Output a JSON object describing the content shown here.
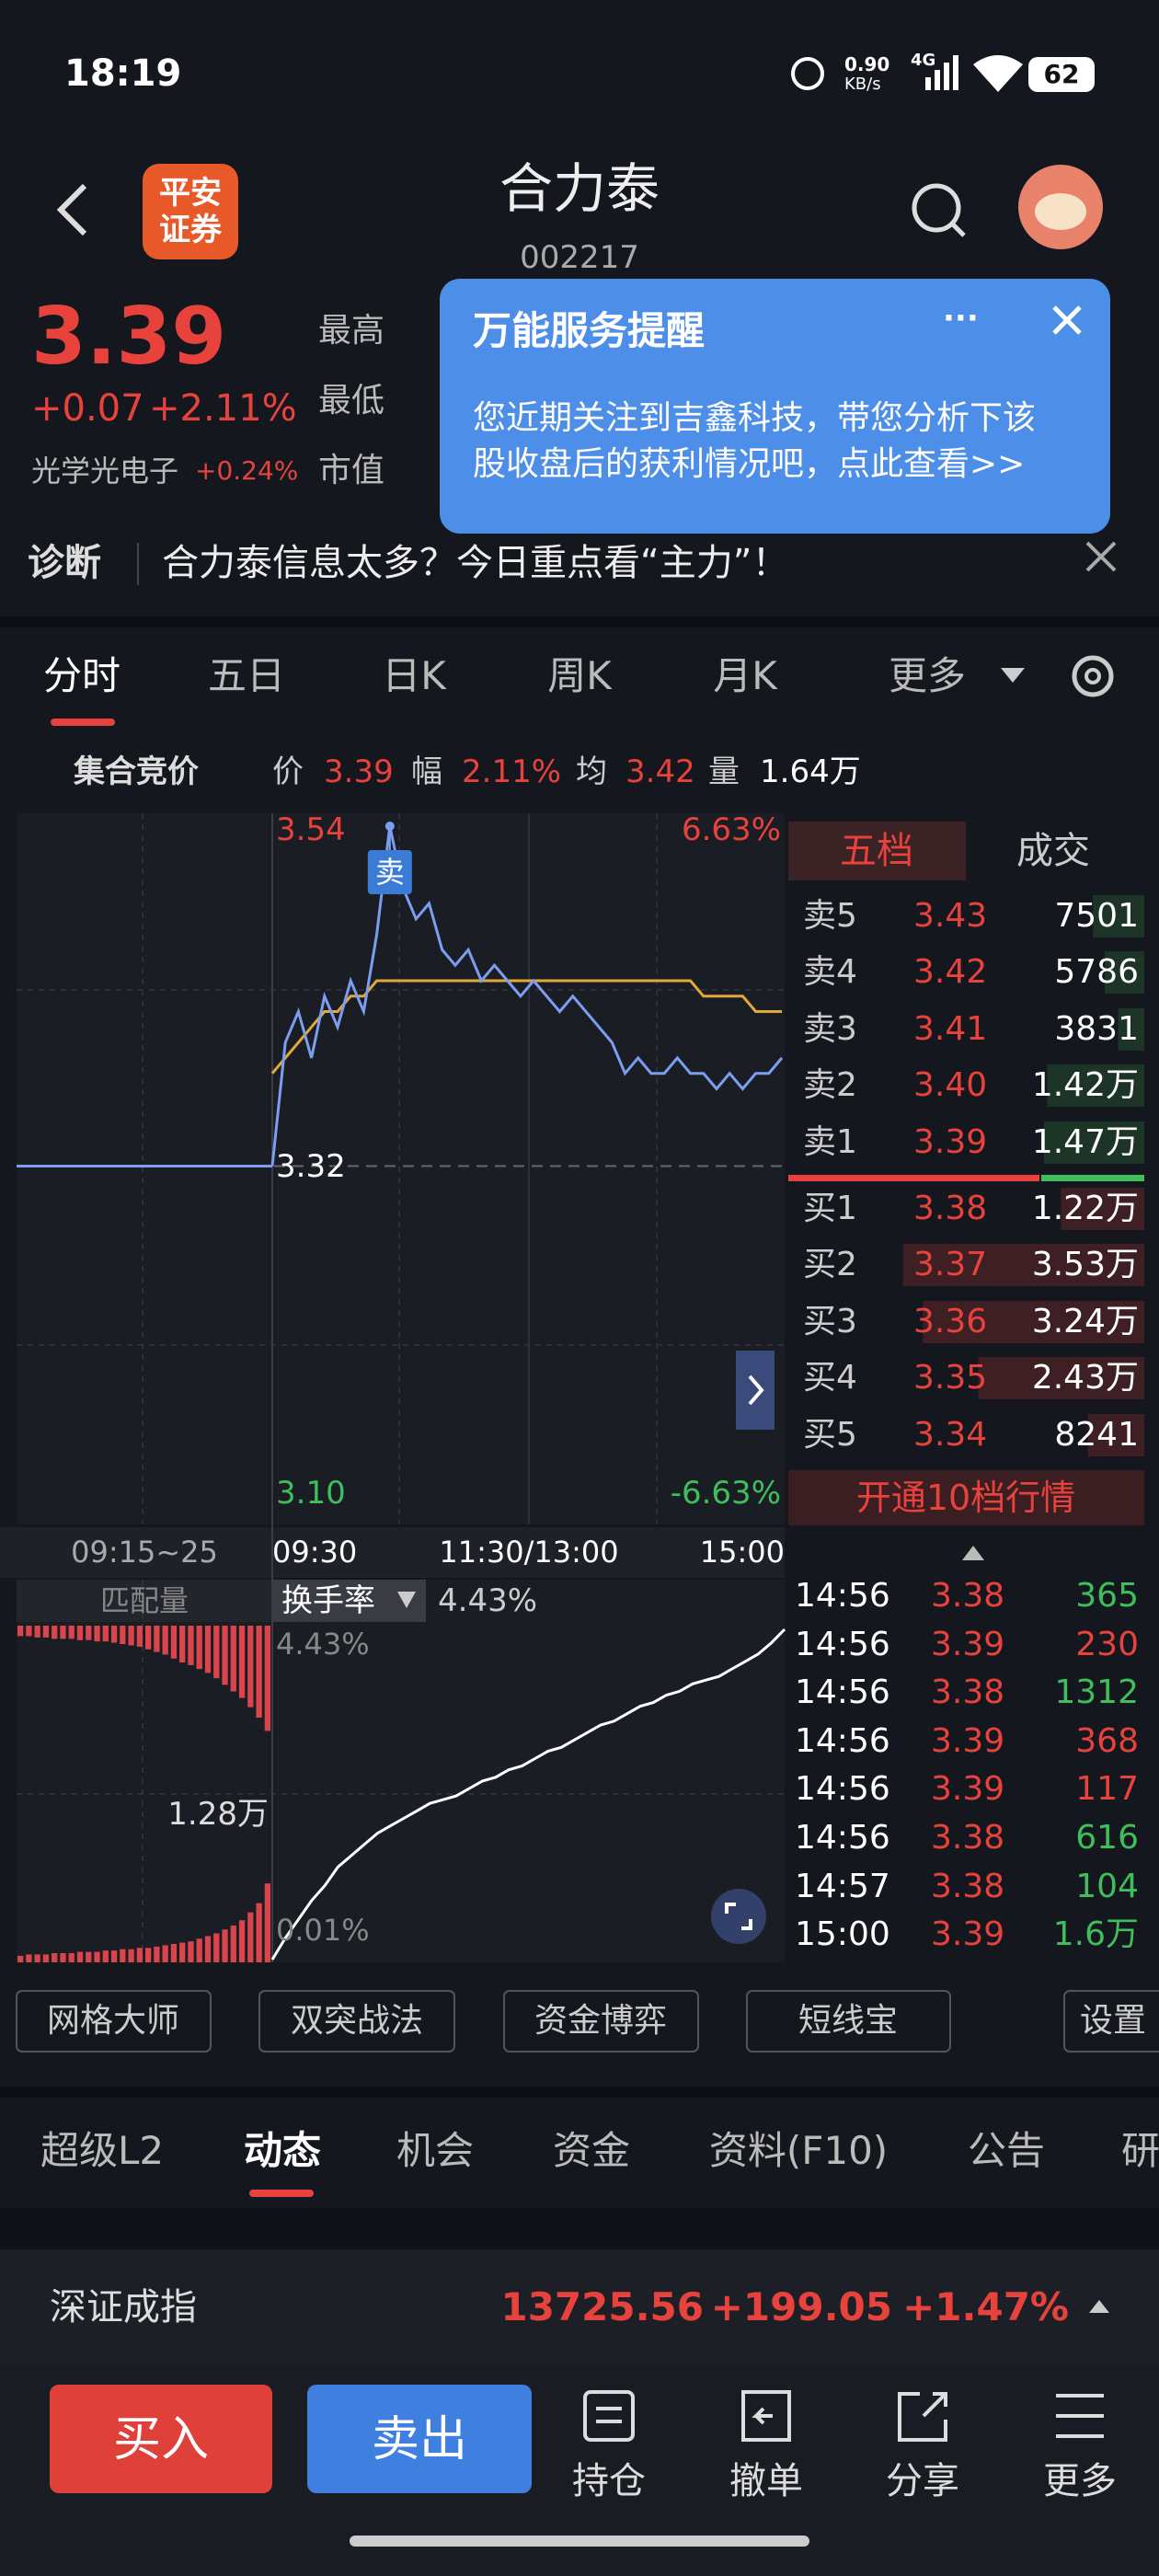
{
  "status": {
    "time": "18:19",
    "speed": "0.90",
    "speed_unit": "KB/s",
    "network": "4G",
    "battery": "62"
  },
  "header": {
    "logo": [
      "平安",
      "证券"
    ],
    "title": "合力泰",
    "code": "002217"
  },
  "quote": {
    "price": "3.39",
    "change": "+0.07",
    "change_pct": "+2.11%",
    "sector": "光学光电子",
    "sector_pct": "+0.24%",
    "fields": [
      "最高",
      "最低",
      "市值"
    ]
  },
  "popup": {
    "title": "万能服务提醒",
    "more": "···",
    "body": "您近期关注到吉鑫科技，带您分析下该股收盘后的获利情况吧，点此查看>>"
  },
  "diagnosis": {
    "label": "诊断",
    "text": "合力泰信息太多？今日重点看“主力”！"
  },
  "tabs": [
    "分时",
    "五日",
    "日K",
    "周K",
    "月K",
    "更多"
  ],
  "info": {
    "label": "集合竞价",
    "items": [
      {
        "key": "价",
        "value": "3.39"
      },
      {
        "key": "幅",
        "value": "2.11%"
      },
      {
        "key": "均",
        "value": "3.42"
      },
      {
        "key": "量",
        "value": "1.64万"
      }
    ]
  },
  "chart_data": {
    "type": "line",
    "ylim": [
      3.1,
      3.54
    ],
    "yticks": [
      {
        "value": 3.1,
        "label": "3.10"
      },
      3.32,
      3.54
    ],
    "pct_labels": [
      "6.63%",
      "-6.63%"
    ],
    "x_labels": [
      "09:15~25",
      "09:30",
      "11:30/13:00",
      "15:00"
    ],
    "sell_marker": "卖",
    "auction": [
      3.32,
      3.32
    ],
    "price": [
      3.32,
      3.4,
      3.42,
      3.39,
      3.43,
      3.41,
      3.44,
      3.42,
      3.47,
      3.54,
      3.5,
      3.48,
      3.49,
      3.46,
      3.45,
      3.46,
      3.44,
      3.45,
      3.44,
      3.43,
      3.44,
      3.43,
      3.42,
      3.43,
      3.42,
      3.41,
      3.4,
      3.38,
      3.39,
      3.38,
      3.38,
      3.39,
      3.38,
      3.38,
      3.37,
      3.38,
      3.37,
      3.38,
      3.38,
      3.39
    ],
    "price_color": "#7b9ef0",
    "avg": [
      3.38,
      3.39,
      3.4,
      3.41,
      3.42,
      3.42,
      3.43,
      3.43,
      3.44,
      3.44,
      3.44,
      3.44,
      3.44,
      3.44,
      3.44,
      3.44,
      3.44,
      3.44,
      3.44,
      3.44,
      3.44,
      3.44,
      3.44,
      3.44,
      3.44,
      3.44,
      3.44,
      3.44,
      3.44,
      3.44,
      3.44,
      3.44,
      3.44,
      3.43,
      3.43,
      3.43,
      3.43,
      3.42,
      3.42,
      3.42
    ],
    "avg_color": "#e0a93a"
  },
  "lower": {
    "indicator": "匹配量",
    "match_mid": {
      "value": 1.28,
      "label": "1.28万"
    },
    "match_upper": [
      0.08,
      0.08,
      0.09,
      0.09,
      0.1,
      0.1,
      0.1,
      0.11,
      0.11,
      0.12,
      0.12,
      0.13,
      0.14,
      0.15,
      0.16,
      0.18,
      0.2,
      0.22,
      0.25,
      0.28,
      0.3,
      0.33,
      0.36,
      0.4,
      0.45,
      0.5,
      0.55,
      0.62,
      0.7,
      0.8
    ],
    "match_lower": [
      0.05,
      0.06,
      0.06,
      0.06,
      0.07,
      0.07,
      0.07,
      0.08,
      0.08,
      0.08,
      0.09,
      0.09,
      0.1,
      0.1,
      0.11,
      0.11,
      0.12,
      0.13,
      0.14,
      0.15,
      0.16,
      0.18,
      0.2,
      0.22,
      0.25,
      0.28,
      0.32,
      0.38,
      0.45,
      0.6
    ],
    "selector": "换手率",
    "current": "4.43%",
    "turnover_ylim": [
      0.01,
      4.43
    ],
    "turnover_yticks": [
      {
        "value": 0.01,
        "label": "0.01%"
      },
      {
        "value": 4.43,
        "label": "4.43%"
      }
    ],
    "turnover": [
      0.01,
      0.3,
      0.55,
      0.8,
      1.0,
      1.25,
      1.4,
      1.55,
      1.7,
      1.8,
      1.9,
      2.0,
      2.1,
      2.15,
      2.2,
      2.3,
      2.4,
      2.45,
      2.55,
      2.6,
      2.7,
      2.8,
      2.85,
      2.95,
      3.05,
      3.15,
      3.2,
      3.3,
      3.4,
      3.45,
      3.55,
      3.6,
      3.7,
      3.75,
      3.8,
      3.9,
      4.0,
      4.1,
      4.25,
      4.43
    ]
  },
  "order_book": {
    "tabs": [
      "五档",
      "成交"
    ],
    "asks": [
      {
        "label": "卖5",
        "price": "3.43",
        "volume": 7501
      },
      {
        "label": "卖4",
        "price": "3.42",
        "volume": 5786
      },
      {
        "label": "卖3",
        "price": "3.41",
        "volume": 3831
      },
      {
        "label": "卖2",
        "price": "3.40",
        "volume": {
          "value": 14200,
          "label": "1.42万"
        }
      },
      {
        "label": "卖1",
        "price": "3.39",
        "volume": {
          "value": 14700,
          "label": "1.47万"
        }
      }
    ],
    "bids": [
      {
        "label": "买1",
        "price": "3.38",
        "volume": {
          "value": 12200,
          "label": "1.22万"
        }
      },
      {
        "label": "买2",
        "price": "3.37",
        "volume": {
          "value": 35300,
          "label": "3.53万"
        }
      },
      {
        "label": "买3",
        "price": "3.36",
        "volume": {
          "value": 32400,
          "label": "3.24万"
        }
      },
      {
        "label": "买4",
        "price": "3.35",
        "volume": {
          "value": 24300,
          "label": "2.43万"
        }
      },
      {
        "label": "买5",
        "price": "3.34",
        "volume": 8241
      }
    ],
    "upgrade": "开通10档行情"
  },
  "trades": [
    {
      "time": "14:56",
      "price": "3.38",
      "volume": "365",
      "color": "#3fbf5b"
    },
    {
      "time": "14:56",
      "price": "3.39",
      "volume": "230",
      "color": "#e8423c"
    },
    {
      "time": "14:56",
      "price": "3.38",
      "volume": "1312",
      "color": "#3fbf5b"
    },
    {
      "time": "14:56",
      "price": "3.39",
      "volume": "368",
      "color": "#e8423c"
    },
    {
      "time": "14:56",
      "price": "3.39",
      "volume": "117",
      "color": "#e8423c"
    },
    {
      "time": "14:56",
      "price": "3.38",
      "volume": "616",
      "color": "#3fbf5b"
    },
    {
      "time": "14:57",
      "price": "3.38",
      "volume": "104",
      "color": "#3fbf5b"
    },
    {
      "time": "15:00",
      "price": "3.39",
      "volume": "1.6万",
      "color": "#3fbf5b"
    }
  ],
  "tools": [
    "网格大师",
    "双突战法",
    "资金博弈",
    "短线宝",
    "设置"
  ],
  "sections": [
    "超级L2",
    "动态",
    "机会",
    "资金",
    "资料(F10)",
    "公告",
    "研"
  ],
  "index": {
    "name": "深证成指",
    "value": "13725.56",
    "change": "+199.05",
    "pct": "+1.47%"
  },
  "bottom": {
    "buy": "买入",
    "sell": "卖出",
    "actions": [
      "持仓",
      "撤单",
      "分享",
      "更多"
    ]
  }
}
